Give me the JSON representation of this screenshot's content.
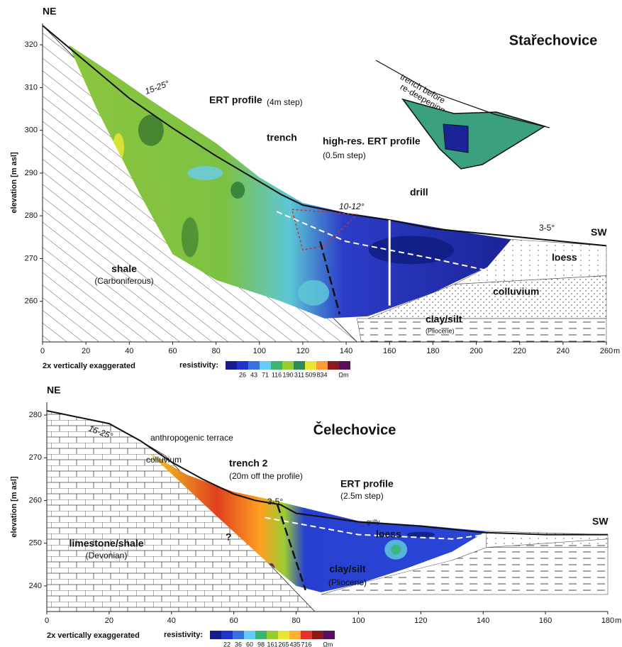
{
  "panels": [
    {
      "title": "Stařechovice",
      "ne": "NE",
      "sw": "SW",
      "y_label": "elevation [m asl]",
      "x_unit": "m",
      "xlim": [
        0,
        260
      ],
      "ylim": [
        250.5,
        325
      ],
      "xticks": [
        0,
        20,
        40,
        60,
        80,
        100,
        120,
        140,
        160,
        180,
        200,
        220,
        240,
        260
      ],
      "yticks": [
        260,
        270,
        280,
        290,
        300,
        310,
        320
      ],
      "note": "2x vertically exaggerated",
      "legend": {
        "label": "resistivity:",
        "values": [
          26,
          43,
          71,
          116,
          190,
          311,
          509,
          834
        ],
        "unit": "Ωm"
      },
      "annotations": [
        "15-25°",
        "ERT profile",
        "(4m step)",
        "trench",
        "high-res. ERT profile",
        "(0.5m step)",
        "drill",
        "10-12°",
        "3-5°",
        "trench before",
        "re-deepening",
        "shale",
        "(Carboniferous)",
        "loess",
        "colluvium",
        "clay/silt",
        "(Pliocene)"
      ]
    },
    {
      "title": "Čelechovice",
      "ne": "NE",
      "sw": "SW",
      "y_label": "elevation [m asl]",
      "x_unit": "m",
      "xlim": [
        0,
        180
      ],
      "ylim": [
        234,
        283
      ],
      "xticks": [
        0,
        20,
        40,
        60,
        80,
        100,
        120,
        140,
        160,
        180
      ],
      "yticks": [
        240,
        250,
        260,
        270,
        280
      ],
      "note": "2x vertically exaggerated",
      "legend": {
        "label": "resistivity:",
        "values": [
          22,
          36,
          60,
          98,
          161,
          265,
          435,
          716
        ],
        "unit": "Ωm"
      },
      "annotations": [
        "15-25°",
        "anthropogenic terrace",
        "colluvium",
        "trench 2",
        "(20m off the profile)",
        "3-5°",
        "ERT profile",
        "(2.5m step)",
        "gully",
        "loess",
        "limestone/shale",
        "(Devonian)",
        "clay/silt",
        "(Pliocene)",
        "?"
      ]
    }
  ]
}
